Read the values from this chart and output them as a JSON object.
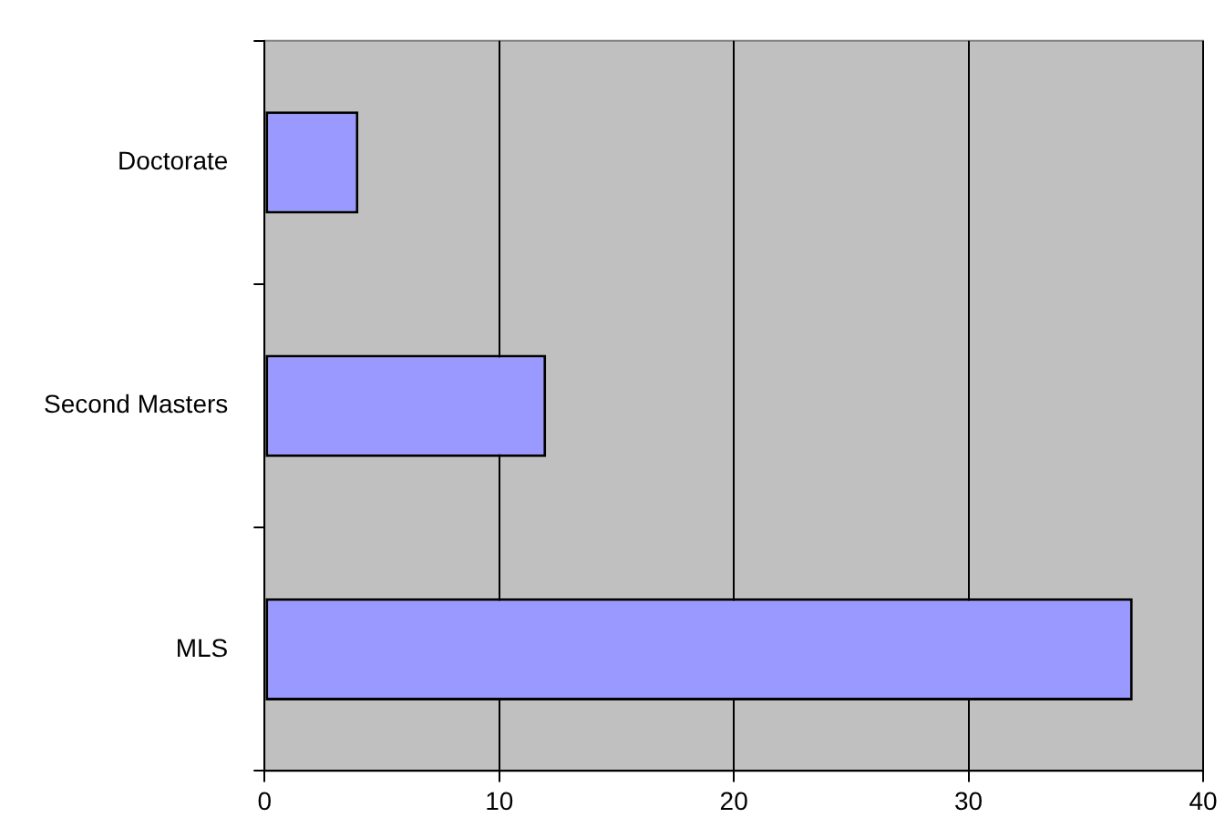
{
  "chart_data": {
    "type": "bar",
    "orientation": "horizontal",
    "categories": [
      "Doctorate",
      "Second Masters",
      "MLS"
    ],
    "values": [
      4,
      12,
      37
    ],
    "color": "#9999ff",
    "xlim": [
      0,
      40
    ],
    "xticks": [
      0,
      10,
      20,
      30,
      40
    ],
    "grid": "x"
  }
}
